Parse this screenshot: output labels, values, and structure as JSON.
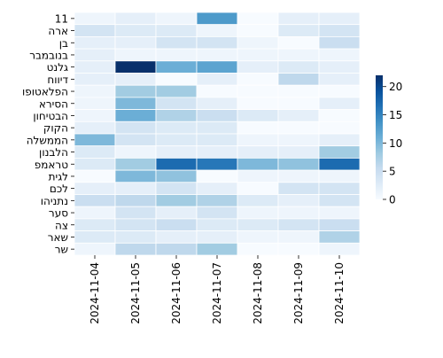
{
  "chart_data": {
    "type": "heatmap",
    "title": "",
    "xlabel": "",
    "ylabel": "",
    "x_categories": [
      "2024-11-04",
      "2024-11-05",
      "2024-11-06",
      "2024-11-07",
      "2024-11-08",
      "2024-11-09",
      "2024-11-10"
    ],
    "y_categories": [
      "11",
      "ארה",
      "בן",
      "בנובמבר",
      "גלנט",
      "דיווח",
      "הפלאטופו",
      "הסירא",
      "הבטיחון",
      "הקוק",
      "הממשלה",
      "הלבנון",
      "טראמפ",
      "לגית",
      "לכם",
      "נתניהו",
      "סער",
      "צה",
      "שאר",
      "שר"
    ],
    "values": [
      [
        1,
        2,
        1,
        13,
        0,
        2,
        2
      ],
      [
        4,
        3,
        3,
        1,
        0,
        3,
        4
      ],
      [
        2,
        2,
        4,
        4,
        1,
        0,
        5
      ],
      [
        2,
        1,
        1,
        1,
        1,
        1,
        1
      ],
      [
        2,
        22,
        11,
        12,
        2,
        3,
        2
      ],
      [
        2,
        2,
        0,
        2,
        0,
        6,
        2
      ],
      [
        1,
        8,
        8,
        0,
        0,
        0,
        0
      ],
      [
        1,
        10,
        4,
        2,
        0,
        0,
        2
      ],
      [
        1,
        11,
        7,
        5,
        3,
        2,
        0
      ],
      [
        2,
        4,
        3,
        3,
        0,
        0,
        0
      ],
      [
        10,
        4,
        3,
        3,
        1,
        1,
        2
      ],
      [
        3,
        1,
        2,
        2,
        2,
        2,
        8
      ],
      [
        3,
        8,
        17,
        16,
        10,
        9,
        17
      ],
      [
        0,
        10,
        9,
        0,
        1,
        1,
        1
      ],
      [
        2,
        2,
        4,
        2,
        0,
        4,
        4
      ],
      [
        5,
        6,
        8,
        7,
        3,
        2,
        4
      ],
      [
        1,
        4,
        2,
        4,
        1,
        1,
        1
      ],
      [
        3,
        4,
        5,
        3,
        3,
        4,
        5
      ],
      [
        3,
        3,
        2,
        2,
        1,
        1,
        7
      ],
      [
        1,
        6,
        6,
        8,
        0,
        0,
        1
      ]
    ],
    "vmin": 0,
    "vmax": 22,
    "colorbar_ticks": [
      0,
      5,
      10,
      15,
      20
    ],
    "colormap": [
      "#f7fbff",
      "#deebf7",
      "#c6dbef",
      "#9ecae1",
      "#6baed6",
      "#4292c6",
      "#2171b5",
      "#08519c",
      "#08306b"
    ]
  }
}
